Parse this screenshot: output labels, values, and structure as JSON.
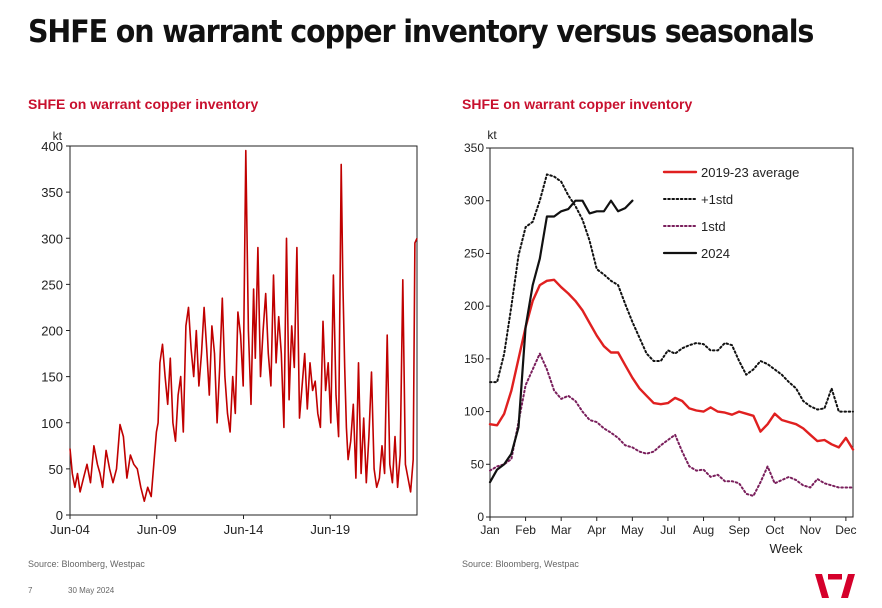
{
  "page": {
    "title": "SHFE on warrant copper inventory versus seasonals",
    "page_number": "7",
    "date": "30 May 2024"
  },
  "chart_data": [
    {
      "type": "line",
      "title": "SHFE on warrant copper inventory",
      "ylabel": "kt",
      "xlabel": "",
      "ylim": [
        0,
        400
      ],
      "yticks": [
        "0",
        "50",
        "100",
        "150",
        "200",
        "250",
        "300",
        "350",
        "400"
      ],
      "x_start": 2004.42,
      "x_end": 2024.42,
      "xticks": [
        {
          "label": "Jun-04",
          "x": 2004.42
        },
        {
          "label": "Jun-09",
          "x": 2009.42
        },
        {
          "label": "Jun-14",
          "x": 2014.42
        },
        {
          "label": "Jun-19",
          "x": 2019.42
        }
      ],
      "source": "Source: Bloomberg, Westpac",
      "color": "#c00000",
      "series": [
        {
          "name": "SHFE on warrant copper inventory",
          "x": [
            2004.42,
            2004.55,
            2004.7,
            2004.85,
            2005.0,
            2005.2,
            2005.4,
            2005.6,
            2005.8,
            2006.0,
            2006.15,
            2006.3,
            2006.5,
            2006.7,
            2006.9,
            2007.1,
            2007.3,
            2007.5,
            2007.7,
            2007.9,
            2008.1,
            2008.3,
            2008.5,
            2008.7,
            2008.9,
            2009.1,
            2009.25,
            2009.4,
            2009.5,
            2009.6,
            2009.75,
            2009.9,
            2010.05,
            2010.2,
            2010.35,
            2010.5,
            2010.65,
            2010.8,
            2010.95,
            2011.1,
            2011.25,
            2011.4,
            2011.55,
            2011.7,
            2011.85,
            2012.0,
            2012.15,
            2012.3,
            2012.45,
            2012.6,
            2012.75,
            2012.9,
            2013.05,
            2013.2,
            2013.35,
            2013.5,
            2013.65,
            2013.8,
            2013.95,
            2014.1,
            2014.25,
            2014.4,
            2014.55,
            2014.7,
            2014.85,
            2015.0,
            2015.1,
            2015.25,
            2015.4,
            2015.55,
            2015.7,
            2015.85,
            2016.0,
            2016.15,
            2016.3,
            2016.45,
            2016.6,
            2016.75,
            2016.9,
            2017.05,
            2017.2,
            2017.35,
            2017.5,
            2017.65,
            2017.8,
            2017.95,
            2018.1,
            2018.25,
            2018.4,
            2018.55,
            2018.7,
            2018.85,
            2019.0,
            2019.15,
            2019.3,
            2019.45,
            2019.6,
            2019.75,
            2019.9,
            2020.05,
            2020.15,
            2020.25,
            2020.35,
            2020.45,
            2020.6,
            2020.75,
            2020.9,
            2021.05,
            2021.2,
            2021.35,
            2021.5,
            2021.65,
            2021.8,
            2021.95,
            2022.1,
            2022.25,
            2022.4,
            2022.55,
            2022.7,
            2022.85,
            2023.0,
            2023.15,
            2023.3,
            2023.45,
            2023.6,
            2023.75,
            2023.9,
            2024.05,
            2024.2,
            2024.3,
            2024.42
          ],
          "values": [
            72,
            45,
            30,
            45,
            25,
            40,
            55,
            35,
            75,
            55,
            45,
            30,
            70,
            50,
            35,
            50,
            98,
            85,
            40,
            65,
            55,
            50,
            30,
            15,
            30,
            20,
            55,
            90,
            100,
            165,
            185,
            150,
            120,
            170,
            100,
            80,
            130,
            150,
            90,
            205,
            225,
            180,
            150,
            200,
            140,
            175,
            225,
            180,
            130,
            205,
            175,
            100,
            160,
            235,
            150,
            110,
            90,
            150,
            110,
            220,
            195,
            140,
            395,
            200,
            120,
            245,
            170,
            290,
            150,
            200,
            240,
            175,
            140,
            260,
            165,
            215,
            175,
            95,
            300,
            125,
            205,
            160,
            290,
            105,
            140,
            175,
            115,
            165,
            135,
            145,
            110,
            95,
            210,
            135,
            165,
            100,
            260,
            130,
            85,
            380,
            250,
            160,
            95,
            60,
            80,
            120,
            40,
            165,
            45,
            105,
            35,
            85,
            155,
            50,
            30,
            40,
            75,
            45,
            195,
            55,
            35,
            85,
            30,
            65,
            255,
            55,
            40,
            25,
            60,
            295,
            300
          ]
        }
      ]
    },
    {
      "type": "line",
      "title": "SHFE on warrant copper inventory",
      "ylabel": "kt",
      "xlabel": "Week",
      "ylim": [
        0,
        350
      ],
      "xlim": [
        1,
        52
      ],
      "yticks": [
        "0",
        "50",
        "100",
        "150",
        "200",
        "250",
        "300",
        "350"
      ],
      "xticks": [
        {
          "label": "Jan",
          "x": 1
        },
        {
          "label": "Feb",
          "x": 6
        },
        {
          "label": "Mar",
          "x": 11
        },
        {
          "label": "Apr",
          "x": 16
        },
        {
          "label": "May",
          "x": 21
        },
        {
          "label": "Jul",
          "x": 26
        },
        {
          "label": "Aug",
          "x": 31
        },
        {
          "label": "Sep",
          "x": 36
        },
        {
          "label": "Oct",
          "x": 41
        },
        {
          "label": "Nov",
          "x": 46
        },
        {
          "label": "Dec",
          "x": 51
        }
      ],
      "source": "Source: Bloomberg, Westpac",
      "series": [
        {
          "name": "2019-23 average",
          "style": "solid",
          "color": "#e02020",
          "x": [
            1,
            2,
            3,
            4,
            5,
            6,
            7,
            8,
            9,
            10,
            11,
            12,
            13,
            14,
            15,
            16,
            17,
            18,
            19,
            20,
            21,
            22,
            23,
            24,
            25,
            26,
            27,
            28,
            29,
            30,
            31,
            32,
            33,
            34,
            35,
            36,
            37,
            38,
            39,
            40,
            41,
            42,
            43,
            44,
            45,
            46,
            47,
            48,
            49,
            50,
            51,
            52
          ],
          "values": [
            88,
            87,
            98,
            120,
            150,
            180,
            205,
            220,
            224,
            225,
            218,
            212,
            205,
            196,
            184,
            172,
            162,
            156,
            156,
            144,
            132,
            122,
            115,
            108,
            107,
            108,
            113,
            110,
            103,
            101,
            100,
            104,
            100,
            99,
            97,
            100,
            98,
            96,
            81,
            88,
            98,
            92,
            90,
            88,
            84,
            78,
            72,
            73,
            69,
            66,
            75,
            64
          ]
        },
        {
          "name": "+1std",
          "style": "dotted",
          "color": "#111111",
          "x": [
            1,
            2,
            3,
            4,
            5,
            6,
            7,
            8,
            9,
            10,
            11,
            12,
            13,
            14,
            15,
            16,
            17,
            18,
            19,
            20,
            21,
            22,
            23,
            24,
            25,
            26,
            27,
            28,
            29,
            30,
            31,
            32,
            33,
            34,
            35,
            36,
            37,
            38,
            39,
            40,
            41,
            42,
            43,
            44,
            45,
            46,
            47,
            48,
            49,
            50,
            51,
            52
          ],
          "values": [
            128,
            128,
            155,
            200,
            248,
            275,
            280,
            300,
            325,
            323,
            318,
            305,
            295,
            282,
            262,
            235,
            230,
            224,
            220,
            202,
            185,
            170,
            155,
            148,
            148,
            158,
            155,
            160,
            163,
            165,
            164,
            158,
            158,
            165,
            163,
            148,
            135,
            140,
            148,
            145,
            140,
            135,
            128,
            122,
            110,
            105,
            102,
            103,
            122,
            100,
            100,
            100
          ]
        },
        {
          "name": "1std",
          "style": "dotted",
          "color": "#7a1f5c",
          "x": [
            1,
            2,
            3,
            4,
            5,
            6,
            7,
            8,
            9,
            10,
            11,
            12,
            13,
            14,
            15,
            16,
            17,
            18,
            19,
            20,
            21,
            22,
            23,
            24,
            25,
            26,
            27,
            28,
            29,
            30,
            31,
            32,
            33,
            34,
            35,
            36,
            37,
            38,
            39,
            40,
            41,
            42,
            43,
            44,
            45,
            46,
            47,
            48,
            49,
            50,
            51,
            52
          ],
          "values": [
            44,
            48,
            50,
            55,
            90,
            125,
            140,
            155,
            140,
            120,
            112,
            115,
            110,
            100,
            92,
            90,
            84,
            80,
            75,
            68,
            66,
            62,
            60,
            62,
            68,
            73,
            78,
            62,
            48,
            44,
            45,
            38,
            40,
            34,
            34,
            32,
            22,
            20,
            33,
            48,
            32,
            35,
            38,
            35,
            30,
            28,
            36,
            32,
            30,
            28,
            28,
            28
          ]
        },
        {
          "name": "2024",
          "style": "solid",
          "color": "#111111",
          "x": [
            1,
            2,
            3,
            4,
            5,
            6,
            7,
            8,
            9,
            10,
            11,
            12,
            13,
            14,
            15,
            16,
            17,
            18,
            19,
            20,
            21
          ],
          "values": [
            33,
            45,
            50,
            60,
            85,
            180,
            220,
            245,
            285,
            285,
            290,
            292,
            300,
            300,
            288,
            290,
            290,
            300,
            290,
            293,
            300
          ]
        }
      ]
    }
  ]
}
